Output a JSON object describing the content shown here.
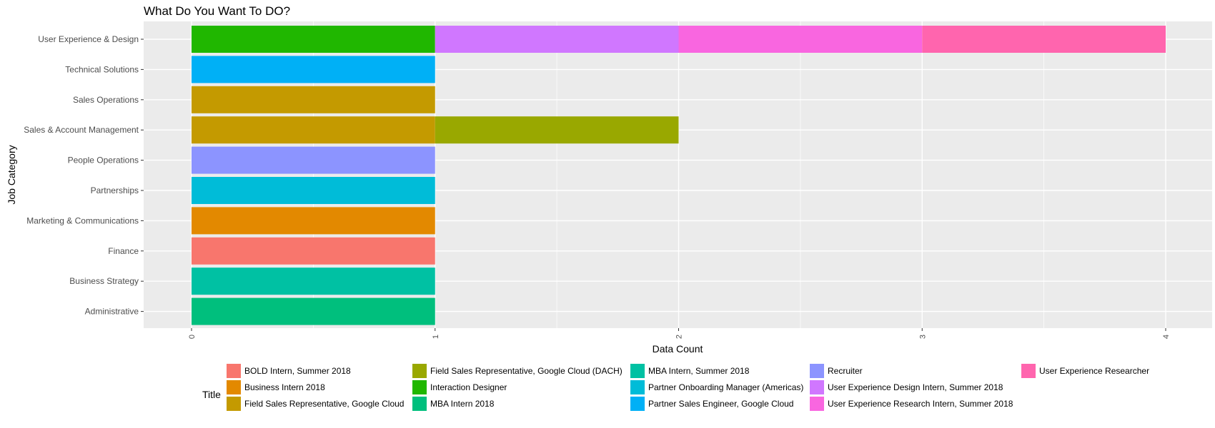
{
  "chart_data": {
    "type": "bar",
    "orientation": "horizontal",
    "stacked": true,
    "title": "What Do You Want To DO?",
    "xlabel": "Data Count",
    "ylabel": "Job Category",
    "xlim": [
      0,
      4
    ],
    "x_ticks": [
      "0",
      "1",
      "2",
      "3",
      "4"
    ],
    "grid": true,
    "legend_position": "bottom",
    "legend_title": "Title",
    "categories": [
      "User Experience & Design",
      "Technical Solutions",
      "Sales Operations",
      "Sales & Account Management",
      "People Operations",
      "Partnerships",
      "Marketing & Communications",
      "Finance",
      "Business Strategy",
      "Administrative"
    ],
    "series": [
      {
        "name": "BOLD Intern, Summer 2018",
        "color": "#F8766D",
        "values": [
          0,
          0,
          0,
          0,
          0,
          0,
          0,
          1,
          0,
          0
        ]
      },
      {
        "name": "Business Intern 2018",
        "color": "#E38900",
        "values": [
          0,
          0,
          0,
          0,
          0,
          0,
          1,
          0,
          0,
          0
        ]
      },
      {
        "name": "Field Sales Representative, Google Cloud",
        "color": "#C49A00",
        "values": [
          0,
          0,
          1,
          1,
          0,
          0,
          0,
          0,
          0,
          0
        ]
      },
      {
        "name": "Field Sales Representative, Google Cloud (DACH)",
        "color": "#99A800",
        "values": [
          0,
          0,
          0,
          1,
          0,
          0,
          0,
          0,
          0,
          0
        ]
      },
      {
        "name": "Interaction Designer",
        "color": "#20B700",
        "values": [
          1,
          0,
          0,
          0,
          0,
          0,
          0,
          0,
          0,
          0
        ]
      },
      {
        "name": "MBA Intern 2018",
        "color": "#00BF7D",
        "values": [
          0,
          0,
          0,
          0,
          0,
          0,
          0,
          0,
          0,
          1
        ]
      },
      {
        "name": "MBA Intern, Summer 2018",
        "color": "#00C1A3",
        "values": [
          0,
          0,
          0,
          0,
          0,
          0,
          0,
          0,
          1,
          0
        ]
      },
      {
        "name": "Partner Onboarding Manager (Americas)",
        "color": "#00BCD8",
        "values": [
          0,
          0,
          0,
          0,
          0,
          1,
          0,
          0,
          0,
          0
        ]
      },
      {
        "name": "Partner Sales Engineer, Google Cloud",
        "color": "#00B0F6",
        "values": [
          0,
          1,
          0,
          0,
          0,
          0,
          0,
          0,
          0,
          0
        ]
      },
      {
        "name": "Recruiter",
        "color": "#8C94FF",
        "values": [
          0,
          0,
          0,
          0,
          1,
          0,
          0,
          0,
          0,
          0
        ]
      },
      {
        "name": "User Experience Design Intern, Summer 2018",
        "color": "#D077FF",
        "values": [
          1,
          0,
          0,
          0,
          0,
          0,
          0,
          0,
          0,
          0
        ]
      },
      {
        "name": "User Experience Research Intern, Summer 2018",
        "color": "#F966E0",
        "values": [
          1,
          0,
          0,
          0,
          0,
          0,
          0,
          0,
          0,
          0
        ]
      },
      {
        "name": "User Experience Researcher",
        "color": "#FF65AE",
        "values": [
          1,
          0,
          0,
          0,
          0,
          0,
          0,
          0,
          0,
          0
        ]
      }
    ]
  }
}
